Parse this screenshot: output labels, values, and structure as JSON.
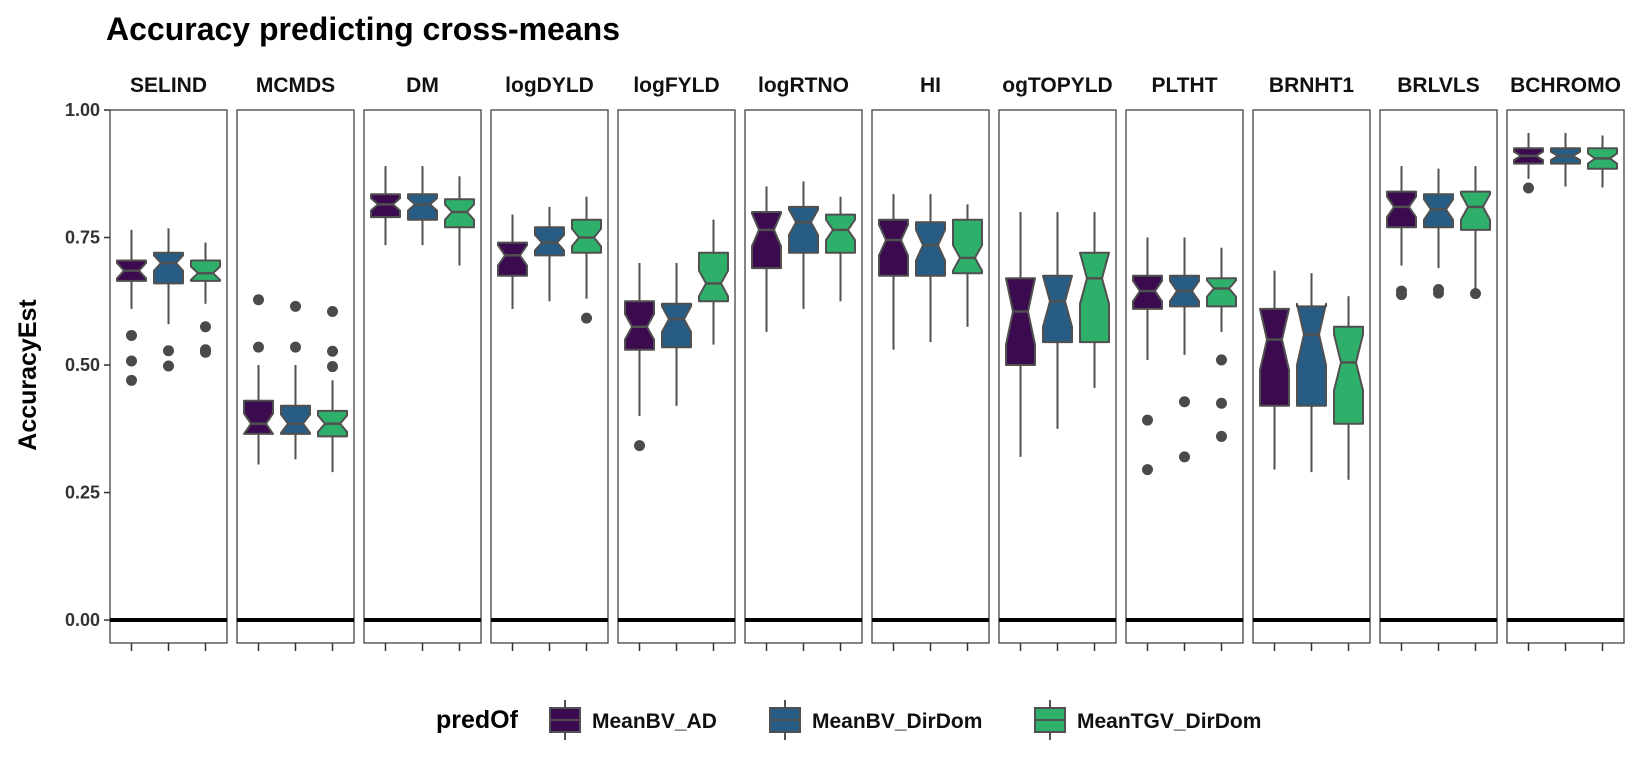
{
  "chart_data": {
    "type": "boxplot",
    "title": "Accuracy predicting cross-means",
    "ylabel": "AccuracyEst",
    "xlabel": "",
    "ylim": [
      -0.045,
      1.0
    ],
    "yticks": [
      0.0,
      0.25,
      0.5,
      0.75,
      1.0
    ],
    "ytick_labels": [
      "0.00",
      "0.25",
      "0.50",
      "0.75",
      "1.00"
    ],
    "reference_line": 0.0,
    "notched": true,
    "legend": {
      "title": "predOf",
      "position": "bottom",
      "entries": [
        {
          "label": "MeanBV_AD",
          "color": "#440154"
        },
        {
          "label": "MeanBV_DirDom",
          "color": "#21908C"
        },
        {
          "label": "MeanTGV_DirDom",
          "color": "#35B779"
        }
      ]
    },
    "series_colors": [
      "#3b0a4f",
      "#275c85",
      "#2eb06a"
    ],
    "facets": [
      {
        "label": "SELIND",
        "boxes": [
          {
            "min": 0.61,
            "q1": 0.665,
            "median": 0.685,
            "q3": 0.705,
            "max": 0.765,
            "notch": 0.015,
            "outliers": [
              0.558,
              0.508,
              0.47
            ]
          },
          {
            "min": 0.58,
            "q1": 0.66,
            "median": 0.7,
            "q3": 0.72,
            "max": 0.768,
            "notch": 0.015,
            "outliers": [
              0.528,
              0.498
            ]
          },
          {
            "min": 0.62,
            "q1": 0.665,
            "median": 0.68,
            "q3": 0.705,
            "max": 0.74,
            "notch": 0.013,
            "outliers": [
              0.575,
              0.53,
              0.525
            ]
          }
        ]
      },
      {
        "label": "MCMDS",
        "boxes": [
          {
            "min": 0.305,
            "q1": 0.365,
            "median": 0.385,
            "q3": 0.43,
            "max": 0.5,
            "notch": 0.02,
            "outliers": [
              0.628,
              0.535
            ]
          },
          {
            "min": 0.315,
            "q1": 0.365,
            "median": 0.385,
            "q3": 0.42,
            "max": 0.5,
            "notch": 0.018,
            "outliers": [
              0.615,
              0.535
            ]
          },
          {
            "min": 0.29,
            "q1": 0.36,
            "median": 0.385,
            "q3": 0.41,
            "max": 0.47,
            "notch": 0.016,
            "outliers": [
              0.605,
              0.527,
              0.497
            ]
          }
        ]
      },
      {
        "label": "DM",
        "boxes": [
          {
            "min": 0.735,
            "q1": 0.79,
            "median": 0.815,
            "q3": 0.835,
            "max": 0.89,
            "notch": 0.012,
            "outliers": []
          },
          {
            "min": 0.735,
            "q1": 0.785,
            "median": 0.815,
            "q3": 0.835,
            "max": 0.89,
            "notch": 0.012,
            "outliers": []
          },
          {
            "min": 0.695,
            "q1": 0.77,
            "median": 0.8,
            "q3": 0.825,
            "max": 0.87,
            "notch": 0.015,
            "outliers": []
          }
        ]
      },
      {
        "label": "logDYLD",
        "boxes": [
          {
            "min": 0.61,
            "q1": 0.675,
            "median": 0.715,
            "q3": 0.74,
            "max": 0.795,
            "notch": 0.02,
            "outliers": []
          },
          {
            "min": 0.625,
            "q1": 0.715,
            "median": 0.74,
            "q3": 0.77,
            "max": 0.81,
            "notch": 0.015,
            "outliers": []
          },
          {
            "min": 0.63,
            "q1": 0.72,
            "median": 0.75,
            "q3": 0.785,
            "max": 0.83,
            "notch": 0.017,
            "outliers": [
              0.592
            ]
          }
        ]
      },
      {
        "label": "logFYLD",
        "boxes": [
          {
            "min": 0.4,
            "q1": 0.53,
            "median": 0.575,
            "q3": 0.625,
            "max": 0.7,
            "notch": 0.025,
            "outliers": [
              0.342
            ]
          },
          {
            "min": 0.42,
            "q1": 0.535,
            "median": 0.59,
            "q3": 0.62,
            "max": 0.7,
            "notch": 0.025,
            "outliers": []
          },
          {
            "min": 0.54,
            "q1": 0.625,
            "median": 0.66,
            "q3": 0.72,
            "max": 0.785,
            "notch": 0.025,
            "outliers": []
          }
        ]
      },
      {
        "label": "logRTNO",
        "boxes": [
          {
            "min": 0.565,
            "q1": 0.69,
            "median": 0.765,
            "q3": 0.8,
            "max": 0.85,
            "notch": 0.032,
            "outliers": []
          },
          {
            "min": 0.61,
            "q1": 0.72,
            "median": 0.78,
            "q3": 0.81,
            "max": 0.86,
            "notch": 0.025,
            "outliers": []
          },
          {
            "min": 0.625,
            "q1": 0.72,
            "median": 0.765,
            "q3": 0.795,
            "max": 0.83,
            "notch": 0.02,
            "outliers": []
          }
        ]
      },
      {
        "label": "HI",
        "boxes": [
          {
            "min": 0.53,
            "q1": 0.675,
            "median": 0.745,
            "q3": 0.785,
            "max": 0.835,
            "notch": 0.03,
            "outliers": []
          },
          {
            "min": 0.545,
            "q1": 0.675,
            "median": 0.735,
            "q3": 0.78,
            "max": 0.835,
            "notch": 0.03,
            "outliers": []
          },
          {
            "min": 0.575,
            "q1": 0.68,
            "median": 0.71,
            "q3": 0.785,
            "max": 0.815,
            "notch": 0.025,
            "outliers": []
          }
        ]
      },
      {
        "label": "ogTOPYLD",
        "boxes": [
          {
            "min": 0.32,
            "q1": 0.5,
            "median": 0.605,
            "q3": 0.67,
            "max": 0.8,
            "notch": 0.065,
            "outliers": []
          },
          {
            "min": 0.375,
            "q1": 0.545,
            "median": 0.625,
            "q3": 0.675,
            "max": 0.8,
            "notch": 0.05,
            "outliers": []
          },
          {
            "min": 0.455,
            "q1": 0.545,
            "median": 0.67,
            "q3": 0.72,
            "max": 0.8,
            "notch": 0.05,
            "outliers": []
          }
        ]
      },
      {
        "label": "PLTHT",
        "boxes": [
          {
            "min": 0.51,
            "q1": 0.61,
            "median": 0.645,
            "q3": 0.675,
            "max": 0.75,
            "notch": 0.02,
            "outliers": [
              0.392,
              0.295
            ]
          },
          {
            "min": 0.52,
            "q1": 0.615,
            "median": 0.645,
            "q3": 0.675,
            "max": 0.75,
            "notch": 0.02,
            "outliers": [
              0.428,
              0.32
            ]
          },
          {
            "min": 0.565,
            "q1": 0.615,
            "median": 0.65,
            "q3": 0.67,
            "max": 0.73,
            "notch": 0.016,
            "outliers": [
              0.51,
              0.425,
              0.36
            ]
          }
        ]
      },
      {
        "label": "BRNHT1",
        "boxes": [
          {
            "min": 0.295,
            "q1": 0.42,
            "median": 0.55,
            "q3": 0.61,
            "max": 0.685,
            "notch": 0.06,
            "outliers": []
          },
          {
            "min": 0.29,
            "q1": 0.42,
            "median": 0.56,
            "q3": 0.615,
            "max": 0.68,
            "notch": 0.06,
            "outliers": []
          },
          {
            "min": 0.275,
            "q1": 0.385,
            "median": 0.505,
            "q3": 0.575,
            "max": 0.635,
            "notch": 0.055,
            "outliers": []
          }
        ]
      },
      {
        "label": "BRLVLS",
        "boxes": [
          {
            "min": 0.695,
            "q1": 0.77,
            "median": 0.81,
            "q3": 0.84,
            "max": 0.89,
            "notch": 0.02,
            "outliers": [
              0.645,
              0.638
            ]
          },
          {
            "min": 0.69,
            "q1": 0.77,
            "median": 0.805,
            "q3": 0.835,
            "max": 0.885,
            "notch": 0.02,
            "outliers": [
              0.648,
              0.641
            ]
          },
          {
            "min": 0.645,
            "q1": 0.765,
            "median": 0.81,
            "q3": 0.84,
            "max": 0.89,
            "notch": 0.025,
            "outliers": [
              0.64
            ]
          }
        ]
      },
      {
        "label": "BCHROMO",
        "boxes": [
          {
            "min": 0.865,
            "q1": 0.895,
            "median": 0.91,
            "q3": 0.925,
            "max": 0.955,
            "notch": 0.008,
            "outliers": [
              0.847
            ]
          },
          {
            "min": 0.85,
            "q1": 0.895,
            "median": 0.91,
            "q3": 0.925,
            "max": 0.955,
            "notch": 0.008,
            "outliers": []
          },
          {
            "min": 0.848,
            "q1": 0.885,
            "median": 0.905,
            "q3": 0.925,
            "max": 0.95,
            "notch": 0.01,
            "outliers": []
          }
        ]
      }
    ]
  }
}
